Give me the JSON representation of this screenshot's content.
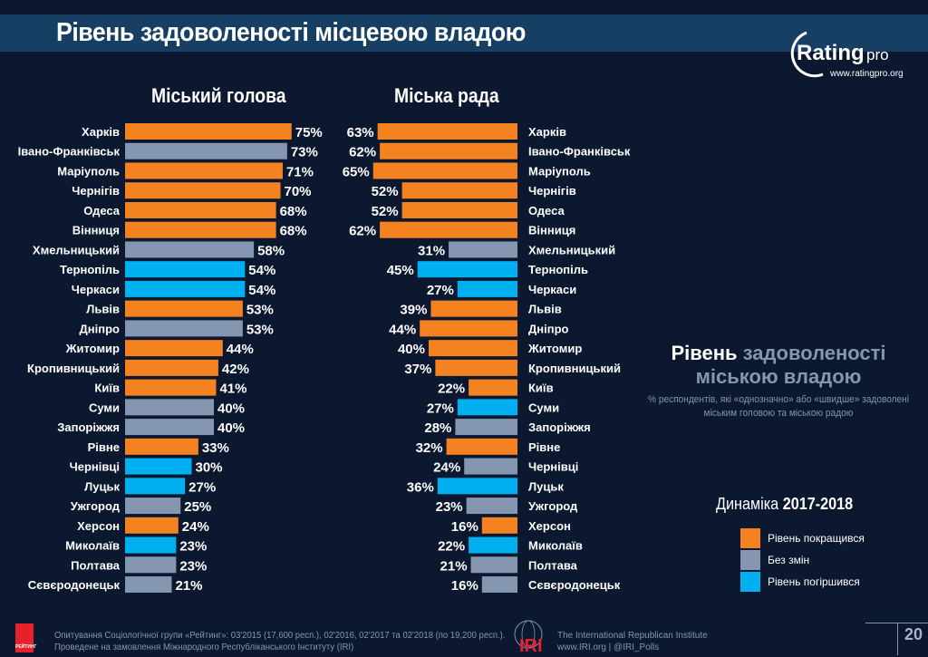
{
  "header": {
    "title": "Рівень задоволеності місцевою владою"
  },
  "logo": {
    "brand": "Ratingpro",
    "url": "www.ratingpro.org"
  },
  "colors": {
    "improved": "#f58220",
    "unchanged": "#8496b0",
    "worsened": "#00b0f0",
    "background": "#0b1830",
    "header": "#163f63"
  },
  "chart_data": [
    {
      "type": "bar",
      "orientation": "horizontal",
      "title": "Міський голова",
      "unit": "%",
      "categories": [
        "Харків",
        "Івано-Франківськ",
        "Маріуполь",
        "Чернігів",
        "Одеса",
        "Вінниця",
        "Хмельницький",
        "Тернопіль",
        "Черкаси",
        "Львів",
        "Дніпро",
        "Житомир",
        "Кропивницький",
        "Київ",
        "Суми",
        "Запоріжжя",
        "Рівне",
        "Чернівці",
        "Луцьк",
        "Ужгород",
        "Херсон",
        "Миколаїв",
        "Полтава",
        "Сєвєродонецьк"
      ],
      "values": [
        75,
        73,
        71,
        70,
        68,
        68,
        58,
        54,
        54,
        53,
        53,
        44,
        42,
        41,
        40,
        40,
        33,
        30,
        27,
        25,
        24,
        23,
        23,
        21
      ],
      "dynamics": [
        "improved",
        "unchanged",
        "improved",
        "improved",
        "improved",
        "improved",
        "unchanged",
        "worsened",
        "worsened",
        "improved",
        "unchanged",
        "improved",
        "improved",
        "improved",
        "unchanged",
        "unchanged",
        "improved",
        "worsened",
        "worsened",
        "unchanged",
        "improved",
        "worsened",
        "unchanged",
        "unchanged"
      ]
    },
    {
      "type": "bar",
      "orientation": "horizontal",
      "title": "Міська рада",
      "unit": "%",
      "categories": [
        "Харків",
        "Івано-Франківськ",
        "Маріуполь",
        "Чернігів",
        "Одеса",
        "Вінниця",
        "Хмельницький",
        "Тернопіль",
        "Черкаси",
        "Львів",
        "Дніпро",
        "Житомир",
        "Кропивницький",
        "Київ",
        "Суми",
        "Запоріжжя",
        "Рівне",
        "Чернівці",
        "Луцьк",
        "Ужгород",
        "Херсон",
        "Миколаїв",
        "Полтава",
        "Сєвєродонецьк"
      ],
      "values": [
        63,
        62,
        65,
        52,
        52,
        62,
        31,
        45,
        27,
        39,
        44,
        40,
        37,
        22,
        27,
        28,
        32,
        24,
        36,
        23,
        16,
        22,
        21,
        16
      ],
      "dynamics": [
        "improved",
        "improved",
        "improved",
        "improved",
        "improved",
        "improved",
        "unchanged",
        "worsened",
        "worsened",
        "improved",
        "improved",
        "improved",
        "improved",
        "improved",
        "worsened",
        "unchanged",
        "improved",
        "unchanged",
        "worsened",
        "unchanged",
        "improved",
        "worsened",
        "unchanged",
        "unchanged"
      ]
    }
  ],
  "side": {
    "title_bold": "Рівень",
    "title_rest1": "задоволеності",
    "title_rest2": "міською владою",
    "subtitle1": "% респондентів, які «однозначно» або «швидше» задоволені",
    "subtitle2": "міським головою та міською радою",
    "dynamics_label": "Динаміка",
    "dynamics_years": "2017-2018",
    "legend": [
      {
        "key": "improved",
        "label": "Рівень покращився"
      },
      {
        "key": "unchanged",
        "label": "Без змін"
      },
      {
        "key": "worsened",
        "label": "Рівень погіршився"
      }
    ]
  },
  "footer": {
    "logo_text": "РЕЙТИНГ",
    "line1": "Опитування Соціологічної групи «Рейтинг»: 03'2015 (17,600 респ.), 02'2016, 02'2017 та 02'2018 (по 19,200 респ.).",
    "line2": "Проведене на замовлення Міжнародного Республіканського Інституту (IRI)",
    "iri_logo": "IRI",
    "iri_name": "The International Republican Institute",
    "iri_links": "www.IRI.org | @IRI_Polls",
    "page_number": "20"
  }
}
